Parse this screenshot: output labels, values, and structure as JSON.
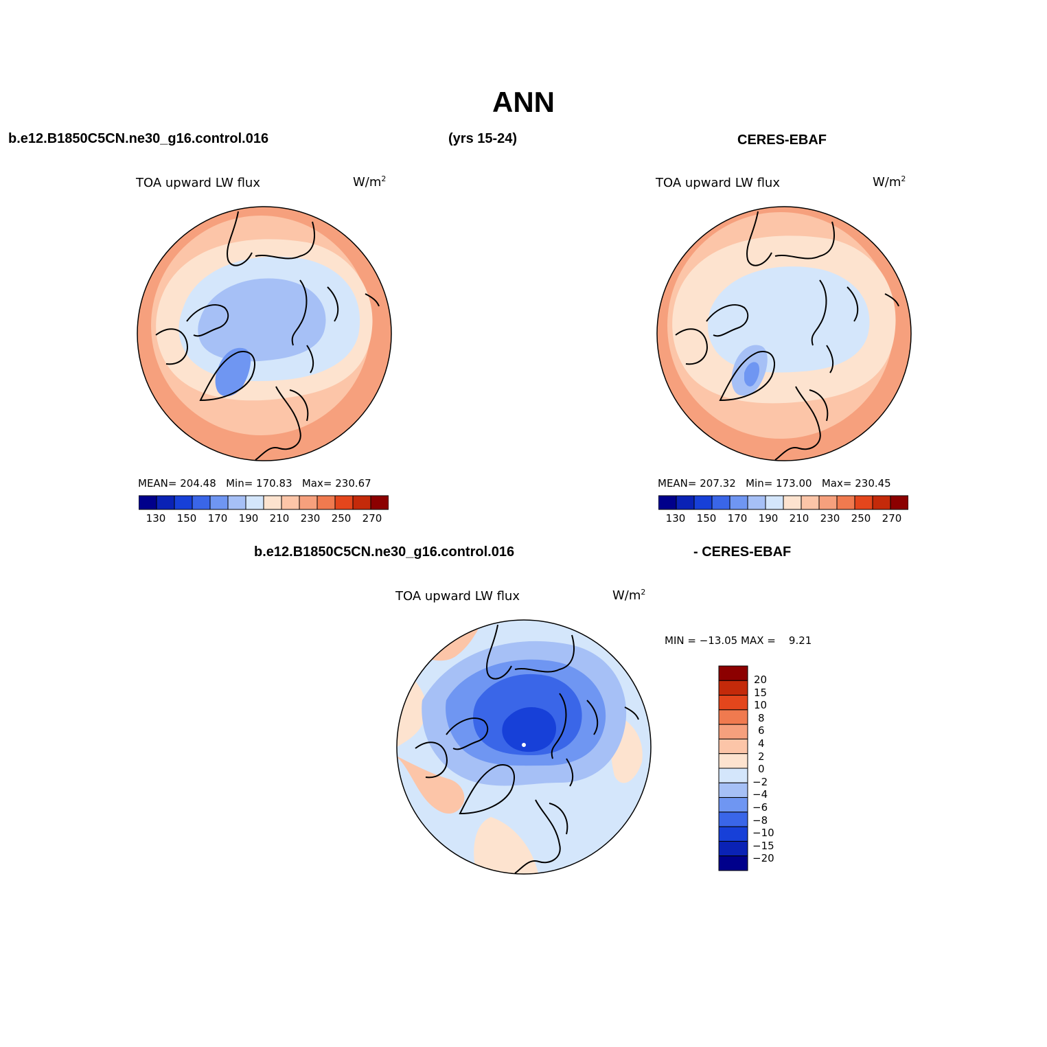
{
  "figure": {
    "title": "ANN",
    "header_left": "b.e12.B1850C5CN.ne30_g16.control.016",
    "header_mid": "(yrs 15-24)",
    "header_right": "CERES-EBAF",
    "diff_header_left": "b.e12.B1850C5CN.ne30_g16.control.016",
    "diff_header_right": "- CERES-EBAF"
  },
  "panels": [
    {
      "id": "model",
      "variable": "TOA upward LW flux",
      "units_base": "W/m",
      "units_exp": "2",
      "stats": {
        "mean_label": "MEAN=",
        "mean": "204.48",
        "min_label": "Min=",
        "min": "170.83",
        "max_label": "Max=",
        "max": "230.67"
      }
    },
    {
      "id": "obs",
      "variable": "TOA upward LW flux",
      "units_base": "W/m",
      "units_exp": "2",
      "stats": {
        "mean_label": "MEAN=",
        "mean": "207.32",
        "min_label": "Min=",
        "min": "173.00",
        "max_label": "Max=",
        "max": "230.45"
      }
    },
    {
      "id": "diff",
      "variable": "TOA upward LW flux",
      "units_base": "W/m",
      "units_exp": "2",
      "stats": {
        "min_label": "MIN =",
        "min": "−13.05",
        "max_label": "MAX =",
        "max": "9.21"
      }
    }
  ],
  "abs_colorbar": {
    "colors": [
      "#00008b",
      "#0a22b5",
      "#1740d8",
      "#3a66e8",
      "#6f96f2",
      "#a6c0f6",
      "#d4e6fb",
      "#fde3cf",
      "#fcc5a8",
      "#f6a07d",
      "#f07a4f",
      "#e4461c",
      "#c42a0a",
      "#8c0000"
    ],
    "labels": [
      "130",
      "150",
      "170",
      "190",
      "210",
      "230",
      "250",
      "270"
    ]
  },
  "diff_colorbar": {
    "colors": [
      "#8c0000",
      "#c42a0a",
      "#e4461c",
      "#f07a4f",
      "#f6a07d",
      "#fcc5a8",
      "#fde3cf",
      "#d4e6fb",
      "#a6c0f6",
      "#6f96f2",
      "#3a66e8",
      "#1740d8",
      "#0a22b5",
      "#00008b"
    ],
    "labels": [
      "20",
      "15",
      "10",
      "8",
      "6",
      "4",
      "2",
      "0",
      "−2",
      "−4",
      "−6",
      "−8",
      "−10",
      "−15",
      "−20"
    ]
  }
}
